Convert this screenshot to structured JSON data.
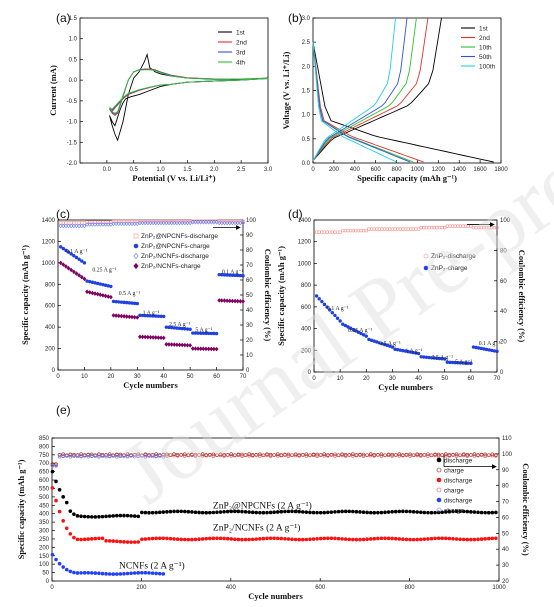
{
  "watermark": "Journal Pre-proof",
  "panels": {
    "a": {
      "label": "(a)"
    },
    "b": {
      "label": "(b)"
    },
    "c": {
      "label": "(c)"
    },
    "d": {
      "label": "(d)"
    },
    "e": {
      "label": "(e)"
    }
  },
  "chart_data": [
    {
      "id": "a",
      "type": "line",
      "xlabel": "Potential (V vs. Li/Li⁺)",
      "ylabel": "Current (mA)",
      "xlim": [
        -0.5,
        3.0
      ],
      "ylim": [
        -2.0,
        1.5
      ],
      "xticks": [
        0.0,
        0.5,
        1.0,
        1.5,
        2.0,
        2.5,
        3.0
      ],
      "yticks": [
        -2.0,
        -1.5,
        -1.0,
        -0.5,
        0.0,
        0.5,
        1.0,
        1.5
      ],
      "legend_position": "top-right",
      "series": [
        {
          "name": "1st",
          "color": "#000000",
          "x": [
            0.05,
            0.1,
            0.15,
            0.2,
            0.3,
            0.4,
            0.5,
            0.6,
            0.7,
            0.75,
            0.8,
            0.9,
            1.0,
            1.2,
            1.5,
            2.0,
            2.5,
            3.0,
            2.5,
            2.0,
            1.5,
            1.2,
            1.0,
            0.8,
            0.6,
            0.45,
            0.35,
            0.3,
            0.25,
            0.2,
            0.15,
            0.1,
            0.05
          ],
          "y": [
            -0.85,
            -1.1,
            -1.3,
            -1.45,
            -1.0,
            -0.35,
            0.05,
            0.2,
            0.45,
            0.62,
            0.3,
            0.2,
            0.15,
            0.1,
            0.05,
            0.02,
            0.02,
            0.05,
            0.0,
            -0.02,
            -0.05,
            -0.1,
            -0.15,
            -0.25,
            -0.35,
            -0.4,
            -0.45,
            -0.55,
            -0.7,
            -0.9,
            -1.1,
            -1.0,
            -0.85
          ]
        },
        {
          "name": "2nd",
          "color": "#e03030",
          "x": [
            0.05,
            0.1,
            0.15,
            0.2,
            0.3,
            0.4,
            0.5,
            0.6,
            0.7,
            0.8,
            0.9,
            1.0,
            1.2,
            1.5,
            2.0,
            2.5,
            3.0,
            2.5,
            2.0,
            1.5,
            1.2,
            1.0,
            0.8,
            0.6,
            0.4,
            0.3,
            0.2,
            0.1,
            0.05
          ],
          "y": [
            -0.7,
            -0.8,
            -0.85,
            -0.8,
            -0.4,
            0.0,
            0.2,
            0.25,
            0.27,
            0.27,
            0.25,
            0.2,
            0.12,
            0.06,
            0.03,
            0.03,
            0.04,
            0.0,
            -0.02,
            -0.05,
            -0.1,
            -0.12,
            -0.18,
            -0.25,
            -0.35,
            -0.45,
            -0.6,
            -0.75,
            -0.7
          ]
        },
        {
          "name": "3rd",
          "color": "#3050e0",
          "x": [
            0.05,
            0.1,
            0.15,
            0.2,
            0.3,
            0.4,
            0.5,
            0.6,
            0.7,
            0.8,
            0.9,
            1.0,
            1.2,
            1.5,
            2.0,
            2.5,
            3.0,
            2.5,
            2.0,
            1.5,
            1.2,
            1.0,
            0.8,
            0.6,
            0.4,
            0.3,
            0.2,
            0.1,
            0.05
          ],
          "y": [
            -0.68,
            -0.78,
            -0.82,
            -0.78,
            -0.38,
            0.0,
            0.2,
            0.25,
            0.26,
            0.26,
            0.24,
            0.19,
            0.11,
            0.05,
            0.03,
            0.03,
            0.04,
            0.0,
            -0.02,
            -0.05,
            -0.1,
            -0.12,
            -0.17,
            -0.24,
            -0.33,
            -0.43,
            -0.58,
            -0.72,
            -0.68
          ]
        },
        {
          "name": "4th",
          "color": "#30c030",
          "x": [
            0.05,
            0.1,
            0.15,
            0.2,
            0.3,
            0.4,
            0.5,
            0.6,
            0.7,
            0.8,
            0.9,
            1.0,
            1.2,
            1.5,
            2.0,
            2.5,
            3.0,
            2.5,
            2.0,
            1.5,
            1.2,
            1.0,
            0.8,
            0.6,
            0.4,
            0.3,
            0.2,
            0.1,
            0.05
          ],
          "y": [
            -0.66,
            -0.76,
            -0.8,
            -0.76,
            -0.36,
            0.0,
            0.2,
            0.24,
            0.25,
            0.25,
            0.23,
            0.18,
            0.1,
            0.05,
            0.03,
            0.03,
            0.04,
            0.0,
            -0.02,
            -0.05,
            -0.1,
            -0.12,
            -0.17,
            -0.23,
            -0.32,
            -0.42,
            -0.56,
            -0.7,
            -0.66
          ]
        }
      ]
    },
    {
      "id": "b",
      "type": "line",
      "xlabel": "Specific capacity (mAh g⁻¹)",
      "ylabel": "Voltage (V vs. Li⁺/Li)",
      "xlim": [
        0,
        1800
      ],
      "ylim": [
        0,
        3.0
      ],
      "xticks": [
        0,
        200,
        400,
        600,
        800,
        1000,
        1200,
        1400,
        1600,
        1800
      ],
      "yticks": [
        0.0,
        0.5,
        1.0,
        1.5,
        2.0,
        2.5,
        3.0
      ],
      "legend_position": "top-right",
      "series": [
        {
          "name": "1st",
          "color": "#000000",
          "cmax": 1730,
          "dmax": 1230
        },
        {
          "name": "2nd",
          "color": "#e03030",
          "cmax": 1060,
          "dmax": 1100
        },
        {
          "name": "10th",
          "color": "#30c030",
          "cmax": 960,
          "dmax": 990
        },
        {
          "name": "50th",
          "color": "#3050e0",
          "cmax": 930,
          "dmax": 900
        },
        {
          "name": "100th",
          "color": "#20d0e0",
          "cmax": 800,
          "dmax": 790
        }
      ]
    },
    {
      "id": "c",
      "type": "scatter",
      "xlabel": "Cycle numbers",
      "ylabel": "Specific capacity (mAh g⁻¹)",
      "y2label": "Coulombic efficiency (%)",
      "xlim": [
        0,
        70
      ],
      "ylim": [
        0,
        1400
      ],
      "y2lim": [
        0,
        100
      ],
      "xticks": [
        0,
        10,
        20,
        30,
        40,
        50,
        60,
        70
      ],
      "yticks": [
        0,
        200,
        400,
        600,
        800,
        1000,
        1200,
        1400
      ],
      "y2ticks": [
        0,
        10,
        20,
        30,
        40,
        50,
        60,
        70,
        80,
        90,
        100
      ],
      "legend_position": "top-right",
      "rate_labels": [
        {
          "text": "0.1 A g⁻¹",
          "x": 3,
          "y": 1090
        },
        {
          "text": "0.25 A g⁻¹",
          "x": 13,
          "y": 920
        },
        {
          "text": "0.5 A g⁻¹",
          "x": 23,
          "y": 700
        },
        {
          "text": "1 A g⁻¹",
          "x": 32,
          "y": 520
        },
        {
          "text": "2.5 A g⁻¹",
          "x": 42,
          "y": 410
        },
        {
          "text": "5 A g⁻¹",
          "x": 52,
          "y": 360
        },
        {
          "text": "0.1 A g⁻¹",
          "x": 62,
          "y": 900
        }
      ],
      "series": [
        {
          "name": "ZnP₂@NPCNFs-discharge",
          "color": "#ff9090",
          "marker": "open-square",
          "axis": "y2",
          "segments": [
            [
              1,
              10,
              98
            ],
            [
              11,
              20,
              98.5
            ],
            [
              21,
              30,
              99
            ],
            [
              31,
              40,
              99
            ],
            [
              41,
              50,
              99
            ],
            [
              51,
              60,
              99.2
            ],
            [
              61,
              70,
              99
            ]
          ]
        },
        {
          "name": "ZnP₂@NPCNFs-charge",
          "color": "#2040e0",
          "marker": "filled-circle",
          "axis": "y",
          "segments": [
            [
              1,
              10,
              1150,
              1000
            ],
            [
              11,
              20,
              830,
              780
            ],
            [
              21,
              30,
              640,
              620
            ],
            [
              31,
              40,
              510,
              500
            ],
            [
              41,
              50,
              400,
              380
            ],
            [
              51,
              60,
              345,
              340
            ],
            [
              61,
              70,
              890,
              880
            ]
          ]
        },
        {
          "name": "ZnP₂/NCNFs-discharge",
          "color": "#6080ff",
          "marker": "open-diamond",
          "axis": "y2",
          "segments": [
            [
              1,
              10,
              96
            ],
            [
              11,
              20,
              97
            ],
            [
              21,
              30,
              97.5
            ],
            [
              31,
              40,
              98
            ],
            [
              41,
              50,
              98
            ],
            [
              51,
              60,
              98.5
            ],
            [
              61,
              70,
              98
            ]
          ]
        },
        {
          "name": "ZnP₂/NCNFs-charge",
          "color": "#800060",
          "marker": "filled-diamond",
          "axis": "y",
          "segments": [
            [
              1,
              10,
              1000,
              850
            ],
            [
              11,
              20,
              730,
              680
            ],
            [
              21,
              30,
              510,
              490
            ],
            [
              31,
              40,
              310,
              300
            ],
            [
              41,
              50,
              240,
              230
            ],
            [
              51,
              60,
              200,
              195
            ],
            [
              61,
              70,
              650,
              640
            ]
          ]
        }
      ]
    },
    {
      "id": "d",
      "type": "scatter",
      "xlabel": "Cycle numbers",
      "ylabel": "Specific capacity (mAh g⁻¹)",
      "y2label": "Coulombic efficiency (%)",
      "xlim": [
        0,
        70
      ],
      "ylim": [
        0,
        1400
      ],
      "y2lim": [
        0,
        100
      ],
      "xticks": [
        0,
        10,
        20,
        30,
        40,
        50,
        60,
        70
      ],
      "yticks": [
        0,
        200,
        400,
        600,
        800,
        1000,
        1200,
        1400
      ],
      "y2ticks": [
        0,
        20,
        40,
        60,
        80,
        100
      ],
      "legend_position": "right",
      "rate_labels": [
        {
          "text": "0.1 A g⁻¹",
          "x": 5,
          "y": 570
        },
        {
          "text": "0.25 A g⁻¹",
          "x": 13,
          "y": 370
        },
        {
          "text": "0.5 A g⁻¹",
          "x": 25,
          "y": 250
        },
        {
          "text": "1 A g⁻¹",
          "x": 35,
          "y": 180
        },
        {
          "text": "2.5 A g⁻¹",
          "x": 45,
          "y": 120
        },
        {
          "text": "5 A g⁻¹",
          "x": 54,
          "y": 80
        },
        {
          "text": "0.1 A g⁻¹",
          "x": 63,
          "y": 250
        }
      ],
      "series": [
        {
          "name": "ZnP₂-discharge",
          "color": "#ff9090",
          "marker": "open-circle",
          "axis": "y2",
          "segments": [
            [
              1,
              10,
              92
            ],
            [
              11,
              20,
              93
            ],
            [
              21,
              30,
              94
            ],
            [
              31,
              40,
              94
            ],
            [
              41,
              50,
              95
            ],
            [
              51,
              60,
              96
            ],
            [
              61,
              70,
              95
            ]
          ]
        },
        {
          "name": "ZnP₂-charge",
          "color": "#2040e0",
          "marker": "filled-circle",
          "axis": "y",
          "segments": [
            [
              1,
              10,
              700,
              470
            ],
            [
              11,
              20,
              440,
              330
            ],
            [
              21,
              30,
              300,
              230
            ],
            [
              31,
              40,
              210,
              170
            ],
            [
              41,
              50,
              140,
              120
            ],
            [
              51,
              60,
              90,
              80
            ],
            [
              61,
              70,
              230,
              190
            ]
          ]
        }
      ]
    },
    {
      "id": "e",
      "type": "scatter",
      "xlabel": "Cycle numbers",
      "ylabel": "Specific capacity (mAh g⁻¹)",
      "y2label": "Coulombic efficiency (%)",
      "xlim": [
        0,
        1000
      ],
      "ylim": [
        0,
        850
      ],
      "y2lim": [
        20,
        110
      ],
      "xticks": [
        0,
        200,
        400,
        600,
        800,
        1000
      ],
      "yticks": [
        0,
        50,
        100,
        150,
        200,
        250,
        300,
        350,
        400,
        450,
        500,
        550,
        600,
        650,
        700,
        750,
        800,
        850
      ],
      "y2ticks": [
        20,
        30,
        40,
        50,
        60,
        70,
        80,
        90,
        100,
        110
      ],
      "legend_position": "right",
      "annotations": [
        {
          "text": "ZnP₂@NPCNFs (2 A g⁻¹)",
          "x": 360,
          "y": 430
        },
        {
          "text": "ZnP₂/NCNFs (2 A g⁻¹)",
          "x": 360,
          "y": 300
        },
        {
          "text": "NCNFs (2 A g⁻¹)",
          "x": 150,
          "y": 75
        }
      ],
      "series": [
        {
          "name": "discharge",
          "color": "#000000",
          "marker": "filled-circle",
          "axis": "y",
          "role": "ZnP₂@NPCNFs capacity",
          "range": [
            1,
            1000
          ],
          "start": 650,
          "level": 410
        },
        {
          "name": "charge",
          "color": "#8b1a1a",
          "marker": "open-circle",
          "axis": "y2",
          "role": "ZnP₂@NPCNFs CE",
          "range": [
            1,
            1000
          ],
          "level": 99.5
        },
        {
          "name": "discharge",
          "color": "#ff1010",
          "marker": "filled-circle",
          "axis": "y",
          "role": "ZnP₂/NCNFs capacity",
          "range": [
            1,
            1000
          ],
          "start": 550,
          "level": 250
        },
        {
          "name": "charge",
          "color": "#e05050",
          "marker": "open-circle",
          "axis": "y2",
          "role": "ZnP₂/NCNFs CE",
          "range": [
            1,
            1000
          ],
          "level": 99
        },
        {
          "name": "discharge",
          "color": "#2040ff",
          "marker": "filled-circle",
          "axis": "y",
          "role": "NCNFs capacity",
          "range": [
            1,
            250
          ],
          "start": 160,
          "level": 45
        },
        {
          "name": "charge",
          "color": "#6080ff",
          "marker": "open-circle",
          "axis": "y2",
          "role": "NCNFs CE",
          "range": [
            1,
            250
          ],
          "level": 98.5
        }
      ]
    }
  ]
}
